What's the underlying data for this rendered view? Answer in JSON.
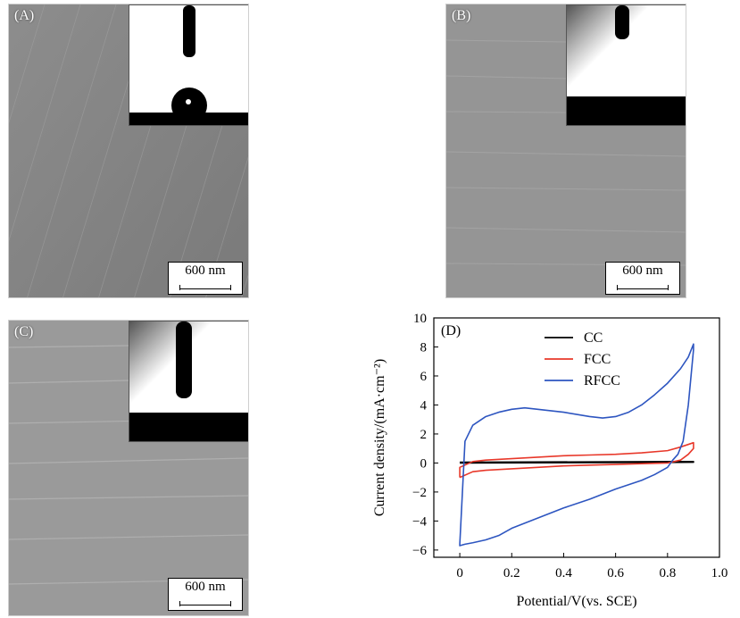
{
  "panels": {
    "a": {
      "label": "(A)",
      "scale": "600 nm"
    },
    "b": {
      "label": "(B)",
      "scale": "600 nm"
    },
    "c": {
      "label": "(C)",
      "scale": "600 nm"
    }
  },
  "chart_data": {
    "type": "line",
    "panel_label": "(D)",
    "xlabel": "Potential/V(vs. SCE)",
    "ylabel": "Current density/(mA·cm⁻²)",
    "xlim": [
      -0.1,
      1.0
    ],
    "ylim": [
      -6.5,
      10
    ],
    "xticks": [
      "0",
      "0.2",
      "0.4",
      "0.6",
      "0.8",
      "1.0"
    ],
    "yticks": [
      "−6",
      "−4",
      "−2",
      "0",
      "2",
      "4",
      "6",
      "8",
      "10"
    ],
    "legend_position": "top-left",
    "series": [
      {
        "name": "CC",
        "color": "#000000",
        "x": [
          0.0,
          0.9,
          0.9,
          0.0
        ],
        "y": [
          0.05,
          0.1,
          0.05,
          0.0
        ]
      },
      {
        "name": "FCC",
        "color": "#e8382a",
        "x": [
          0.0,
          0.05,
          0.1,
          0.2,
          0.3,
          0.4,
          0.5,
          0.6,
          0.7,
          0.8,
          0.85,
          0.88,
          0.9,
          0.9,
          0.85,
          0.8,
          0.7,
          0.6,
          0.5,
          0.4,
          0.3,
          0.2,
          0.1,
          0.05,
          0.0,
          0.0
        ],
        "y": [
          -1.0,
          -0.6,
          -0.5,
          -0.4,
          -0.3,
          -0.2,
          -0.15,
          -0.1,
          -0.05,
          0.0,
          0.2,
          0.6,
          1.0,
          1.4,
          1.1,
          0.85,
          0.7,
          0.6,
          0.55,
          0.5,
          0.4,
          0.3,
          0.2,
          0.1,
          -0.3,
          -1.0
        ]
      },
      {
        "name": "RFCC",
        "color": "#2d55c0",
        "x": [
          0.0,
          0.02,
          0.05,
          0.1,
          0.15,
          0.2,
          0.25,
          0.3,
          0.4,
          0.5,
          0.55,
          0.6,
          0.65,
          0.7,
          0.75,
          0.8,
          0.85,
          0.88,
          0.9,
          0.9,
          0.88,
          0.86,
          0.84,
          0.82,
          0.8,
          0.75,
          0.7,
          0.6,
          0.5,
          0.4,
          0.3,
          0.2,
          0.15,
          0.1,
          0.05,
          0.02,
          0.0,
          0.0
        ],
        "y": [
          -5.6,
          1.5,
          2.6,
          3.2,
          3.5,
          3.7,
          3.8,
          3.7,
          3.5,
          3.2,
          3.1,
          3.2,
          3.5,
          4.0,
          4.7,
          5.5,
          6.5,
          7.3,
          8.2,
          7.8,
          4.0,
          1.5,
          0.6,
          0.2,
          -0.3,
          -0.8,
          -1.2,
          -1.8,
          -2.5,
          -3.1,
          -3.8,
          -4.5,
          -5.0,
          -5.3,
          -5.5,
          -5.6,
          -5.7,
          -5.6
        ]
      }
    ]
  }
}
